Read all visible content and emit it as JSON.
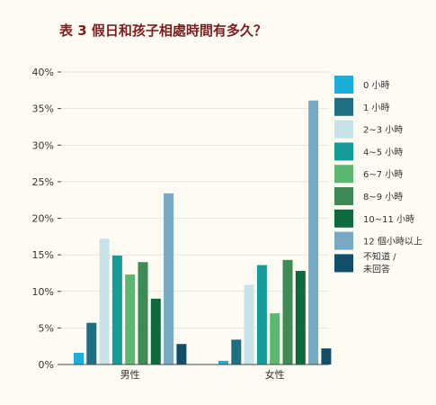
{
  "chart_data": {
    "type": "bar",
    "title": "表 3 假日和孩子相處時間有多久？",
    "categories": [
      "男性",
      "女性"
    ],
    "yticks": [
      "0%",
      "5%",
      "10%",
      "15%",
      "20%",
      "25%",
      "30%",
      "35%",
      "40%"
    ],
    "ylim": [
      0,
      40
    ],
    "unit": "%",
    "legend_position": "right",
    "series": [
      {
        "name": "0 小時",
        "legend_lines": [
          "0 小時"
        ],
        "color": "#1aaed8",
        "values": [
          1.6,
          0.5
        ]
      },
      {
        "name": "1 小時",
        "legend_lines": [
          "1 小時"
        ],
        "color": "#1e6e84",
        "values": [
          5.7,
          3.4
        ]
      },
      {
        "name": "2~3 小時",
        "legend_lines": [
          "2~3 小時"
        ],
        "color": "#c7e2e8",
        "values": [
          17.2,
          10.9
        ]
      },
      {
        "name": "4~5 小時",
        "legend_lines": [
          "4~5 小時"
        ],
        "color": "#159c98",
        "values": [
          14.9,
          13.6
        ]
      },
      {
        "name": "6~7 小時",
        "legend_lines": [
          "6~7 小時"
        ],
        "color": "#5cb870",
        "values": [
          12.3,
          7.0
        ]
      },
      {
        "name": "8~9 小時",
        "legend_lines": [
          "8~9 小時"
        ],
        "color": "#3d8a55",
        "values": [
          14.0,
          14.3
        ]
      },
      {
        "name": "10~11 小時",
        "legend_lines": [
          "10~11 小時"
        ],
        "color": "#0d6a3e",
        "values": [
          9.0,
          12.8
        ]
      },
      {
        "name": "12 個小時以上",
        "legend_lines": [
          "12 個小時以上"
        ],
        "color": "#76a9c2",
        "values": [
          23.4,
          36.1
        ]
      },
      {
        "name": "不知道 / 未回答",
        "legend_lines": [
          "不知道 /",
          "未回答"
        ],
        "color": "#124f6a",
        "values": [
          2.8,
          2.2
        ]
      }
    ]
  }
}
